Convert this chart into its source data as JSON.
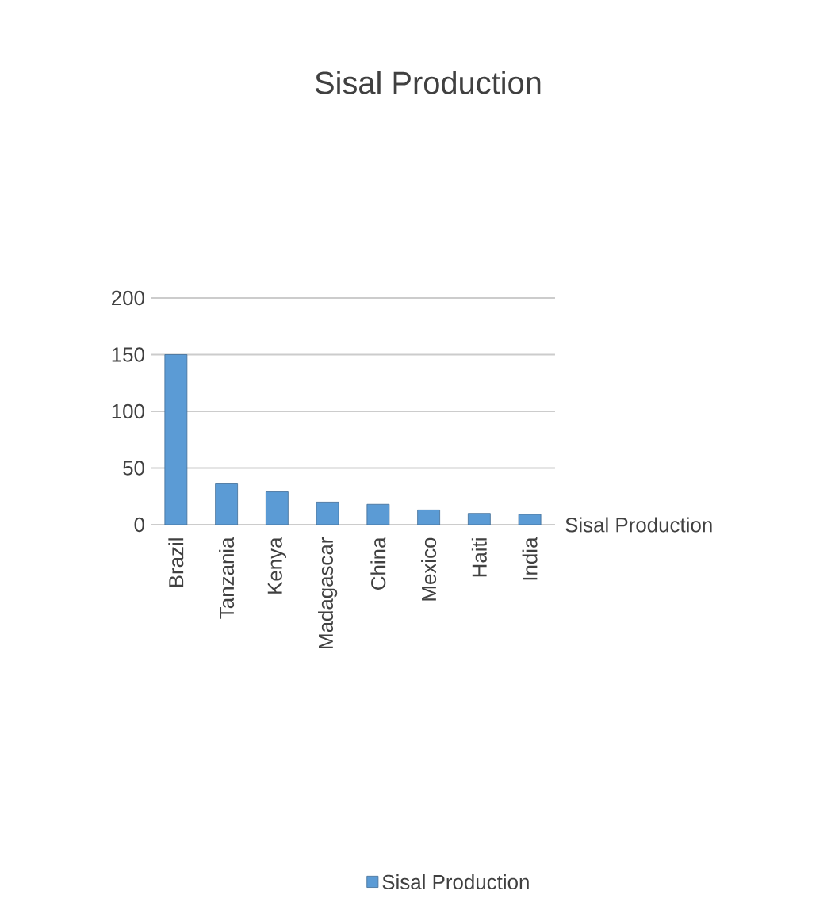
{
  "chart_data": {
    "type": "bar",
    "title": "Sisal Production",
    "categories": [
      "Brazil",
      "Tanzania",
      "Kenya",
      "Madagascar",
      "China",
      "Mexico",
      "Haiti",
      "India"
    ],
    "series": [
      {
        "name": "Sisal Production",
        "color": "#5b9bd5",
        "values": [
          150,
          36,
          29,
          20,
          18,
          13,
          10,
          9
        ]
      }
    ],
    "ylim": [
      0,
      200
    ],
    "yticks": [
      0,
      50,
      100,
      150,
      200
    ],
    "grid": "y",
    "legend": "bottom",
    "annotations": [
      "Sisal Production"
    ]
  }
}
